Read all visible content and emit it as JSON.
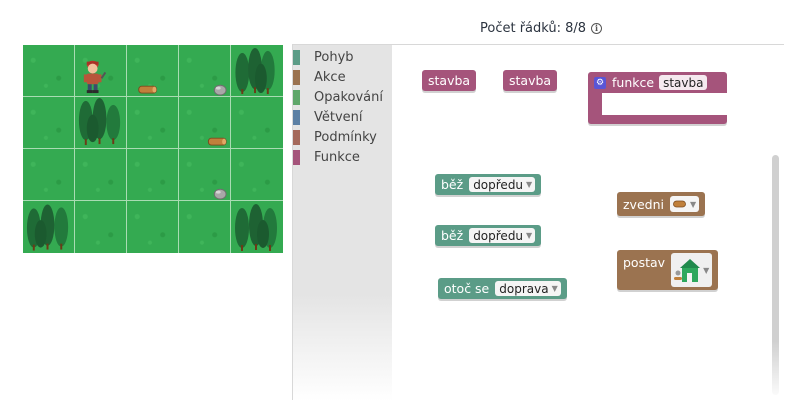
{
  "header": {
    "line_count": "Počet řádků: 8/8",
    "info_icon": "info-icon"
  },
  "toolbox": {
    "items": [
      {
        "label": "Pohyb",
        "color": "#5b9c87"
      },
      {
        "label": "Akce",
        "color": "#9b7350"
      },
      {
        "label": "Opakování",
        "color": "#5fa76a"
      },
      {
        "label": "Větvení",
        "color": "#5b80a5"
      },
      {
        "label": "Podmínky",
        "color": "#a5695b"
      },
      {
        "label": "Funkce",
        "color": "#a5547b"
      }
    ]
  },
  "blocks": {
    "call1": "stavba",
    "call2": "stavba",
    "def_keyword": "funkce",
    "def_name": "stavba",
    "move1_keyword": "běž",
    "move1_value": "dopředu",
    "move2_keyword": "běž",
    "move2_value": "dopředu",
    "turn_keyword": "otoč se",
    "turn_value": "doprava",
    "pickup_keyword": "zvedni",
    "build_keyword": "postav"
  },
  "colors": {
    "function": "#a5547b",
    "movement": "#5b9c87",
    "action": "#9b7350",
    "grass": "#34aa51"
  }
}
